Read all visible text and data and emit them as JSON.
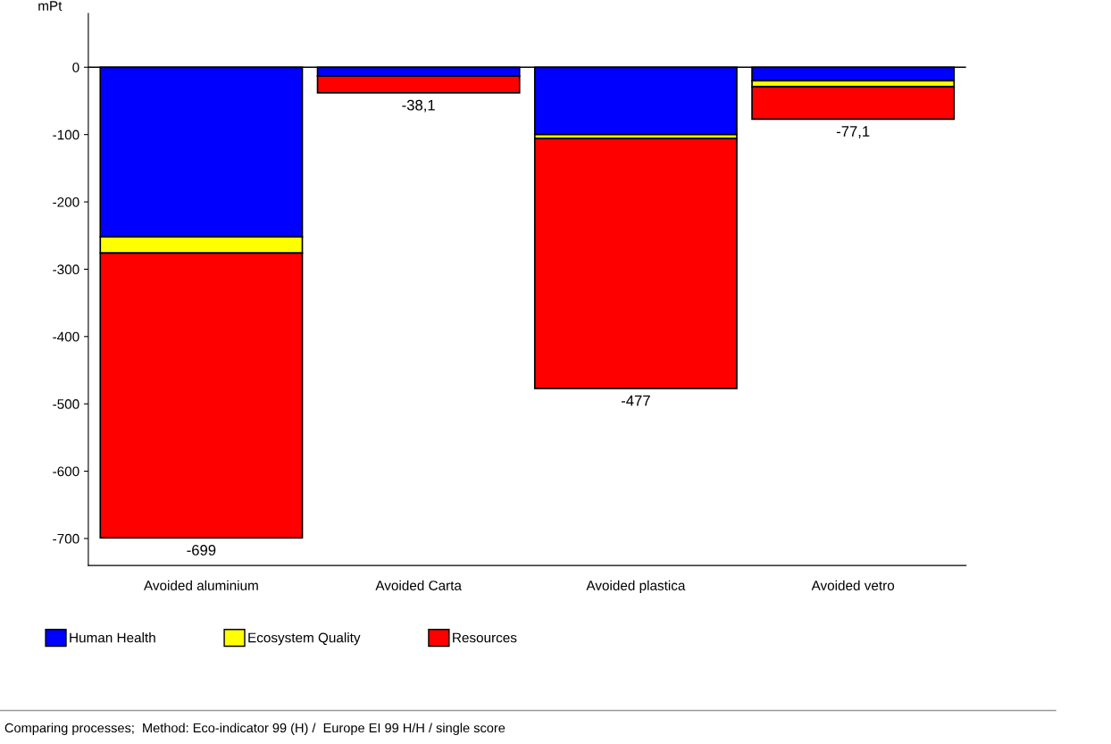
{
  "chart_data": {
    "type": "bar",
    "stacked": true,
    "ylabel": "mPt",
    "categories": [
      "Avoided aluminium",
      "Avoided Carta",
      "Avoided plastica",
      "Avoided vetro"
    ],
    "series": [
      {
        "name": "Human Health",
        "color": "#0000ff",
        "values": [
          -252,
          -13,
          -100,
          -20
        ]
      },
      {
        "name": "Ecosystem Quality",
        "color": "#ffff00",
        "values": [
          -24,
          0,
          -6,
          -9
        ]
      },
      {
        "name": "Resources",
        "color": "#ff0000",
        "values": [
          -423,
          -25,
          -371,
          -48
        ]
      }
    ],
    "totals": [
      "-699",
      "-38,1",
      "-477",
      "-77,1"
    ],
    "ylim": [
      -740,
      80
    ],
    "yticks": [
      0,
      -100,
      -200,
      -300,
      -400,
      -500,
      -600,
      -700
    ],
    "legend": "bottom",
    "grid": false,
    "ref_lines": [
      {
        "axis": "y",
        "value": 0,
        "color": "#000000"
      }
    ],
    "annotations": [
      "Comparing processes;  Method: Eco-indicator 99 (H) /  Europe EI 99 H/H / single score"
    ]
  }
}
